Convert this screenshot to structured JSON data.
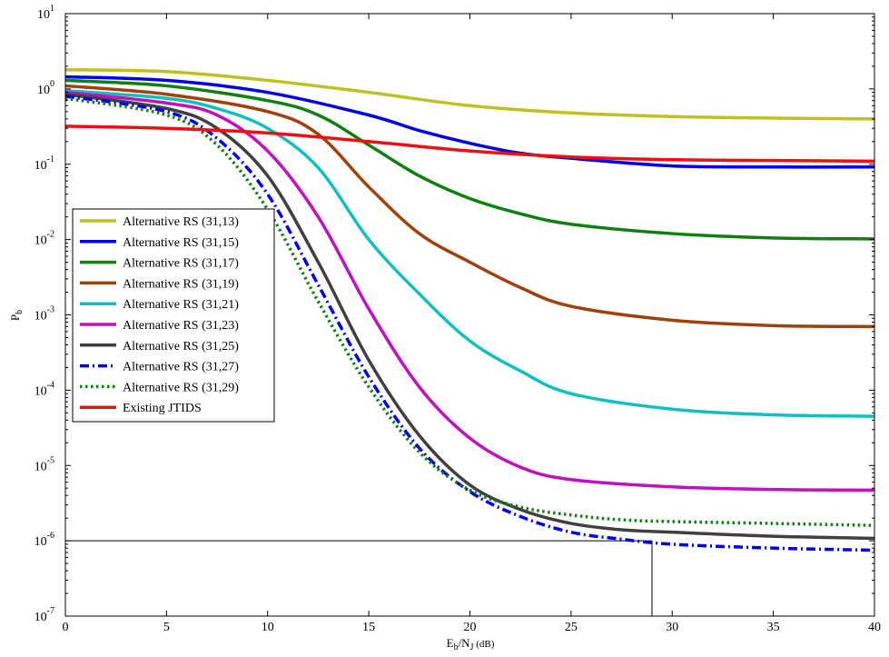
{
  "chart_data": {
    "type": "line",
    "title": "",
    "xlabel": {
      "main": "E",
      "sub1": "b",
      "mid": "/N",
      "sub2": "J",
      "unit": " (dB)"
    },
    "ylabel": {
      "main": "P",
      "sub": "b"
    },
    "xlim": [
      0,
      40
    ],
    "ylim_log10": [
      -7,
      1
    ],
    "yscale": "log",
    "grid": false,
    "legend_placement": "center-left",
    "x_ticks": [
      0,
      5,
      10,
      15,
      20,
      25,
      30,
      35,
      40
    ],
    "y_ticks": [
      {
        "exp": 1,
        "label_base": "10",
        "label_exp": "1"
      },
      {
        "exp": 0,
        "label_base": "10",
        "label_exp": "0"
      },
      {
        "exp": -1,
        "label_base": "10",
        "label_exp": "-1"
      },
      {
        "exp": -2,
        "label_base": "10",
        "label_exp": "-2"
      },
      {
        "exp": -3,
        "label_base": "10",
        "label_exp": "-3"
      },
      {
        "exp": -4,
        "label_base": "10",
        "label_exp": "-4"
      },
      {
        "exp": -5,
        "label_base": "10",
        "label_exp": "-5"
      },
      {
        "exp": -6,
        "label_base": "10",
        "label_exp": "-6"
      },
      {
        "exp": -7,
        "label_base": "10",
        "label_exp": "-7"
      }
    ],
    "series": [
      {
        "name": "Alternative RS (31,13)",
        "color": "#c0c020",
        "dash": "solid",
        "x": [
          0,
          5,
          10,
          15,
          20,
          25,
          30,
          35,
          40
        ],
        "y": [
          1.8,
          1.7,
          1.3,
          0.9,
          0.6,
          0.48,
          0.43,
          0.41,
          0.4
        ]
      },
      {
        "name": "Alternative RS (31,15)",
        "color": "#0000ee",
        "dash": "solid",
        "x": [
          0,
          5,
          10,
          15,
          17.5,
          20,
          22.5,
          25,
          30,
          35,
          40
        ],
        "y": [
          1.45,
          1.3,
          0.9,
          0.45,
          0.28,
          0.19,
          0.14,
          0.12,
          0.095,
          0.092,
          0.092
        ]
      },
      {
        "name": "Alternative RS (31,17)",
        "color": "#108010",
        "dash": "solid",
        "x": [
          0,
          5,
          10,
          12.5,
          15,
          17.5,
          20,
          22.5,
          25,
          30,
          35,
          40
        ],
        "y": [
          1.3,
          1.1,
          0.7,
          0.45,
          0.18,
          0.07,
          0.035,
          0.022,
          0.016,
          0.012,
          0.0105,
          0.0102
        ]
      },
      {
        "name": "Alternative RS (31,19)",
        "color": "#a0400a",
        "dash": "solid",
        "x": [
          0,
          5,
          10,
          12.5,
          15,
          17.5,
          20,
          22.5,
          25,
          30,
          35,
          40
        ],
        "y": [
          1.1,
          0.85,
          0.5,
          0.25,
          0.05,
          0.012,
          0.005,
          0.0023,
          0.0013,
          0.00085,
          0.00072,
          0.0007
        ]
      },
      {
        "name": "Alternative RS (31,21)",
        "color": "#10c0c0",
        "dash": "solid",
        "x": [
          0,
          5,
          7.5,
          10,
          12.5,
          15,
          17.5,
          20,
          22.5,
          25,
          30,
          35,
          40
        ],
        "y": [
          0.95,
          0.75,
          0.55,
          0.3,
          0.09,
          0.01,
          0.0019,
          0.00045,
          0.00018,
          9e-05,
          5.6e-05,
          4.7e-05,
          4.5e-05
        ]
      },
      {
        "name": "Alternative RS (31,23)",
        "color": "#c010c0",
        "dash": "solid",
        "x": [
          0,
          5,
          7.5,
          10,
          12.5,
          15,
          17.5,
          20,
          22.5,
          25,
          30,
          35,
          40
        ],
        "y": [
          0.9,
          0.65,
          0.45,
          0.15,
          0.02,
          0.0012,
          0.00011,
          2.3e-05,
          9.5e-06,
          6.5e-06,
          5.2e-06,
          4.8e-06,
          4.7e-06
        ]
      },
      {
        "name": "Alternative RS (31,25)",
        "color": "#404040",
        "dash": "solid",
        "x": [
          0,
          5,
          7.5,
          10,
          12.5,
          15,
          17.5,
          20,
          22.5,
          25,
          27.5,
          30,
          35,
          40
        ],
        "y": [
          0.85,
          0.55,
          0.3,
          0.07,
          0.005,
          0.00025,
          2.5e-05,
          5.5e-06,
          2.6e-06,
          1.7e-06,
          1.4e-06,
          1.3e-06,
          1.15e-06,
          1.08e-06
        ]
      },
      {
        "name": "Alternative RS (31,27)",
        "color": "#0000ee",
        "dash": "dashdot",
        "x": [
          0,
          5,
          7.5,
          10,
          12.5,
          15,
          17.5,
          20,
          22.5,
          25,
          27.5,
          30,
          35,
          40
        ],
        "y": [
          0.8,
          0.5,
          0.22,
          0.04,
          0.0025,
          0.00015,
          1.7e-05,
          4.5e-06,
          2.1e-06,
          1.3e-06,
          1.05e-06,
          9e-07,
          8e-07,
          7.5e-07
        ]
      },
      {
        "name": "Alternative RS (31,29)",
        "color": "#108010",
        "dash": "dotted",
        "x": [
          0,
          5,
          7.5,
          10,
          12.5,
          15,
          17.5,
          20,
          22.5,
          25,
          27.5,
          30,
          35,
          40
        ],
        "y": [
          0.75,
          0.45,
          0.18,
          0.025,
          0.0015,
          0.00011,
          1.5e-05,
          4.7e-06,
          2.8e-06,
          2.2e-06,
          1.9e-06,
          1.8e-06,
          1.7e-06,
          1.6e-06
        ]
      },
      {
        "name": "Existing JTIDS",
        "color": "#ee1010",
        "dash": "solid",
        "x": [
          0,
          5,
          10,
          15,
          20,
          25,
          30,
          35,
          40
        ],
        "y": [
          0.32,
          0.3,
          0.26,
          0.2,
          0.15,
          0.125,
          0.115,
          0.112,
          0.11
        ]
      }
    ],
    "reference_lines": {
      "horizontal_y": 1e-06,
      "horizontal_x_range": [
        0,
        29
      ],
      "vertical_x": 29,
      "vertical_y_range": [
        1e-07,
        1e-06
      ],
      "color": "#000000"
    }
  }
}
